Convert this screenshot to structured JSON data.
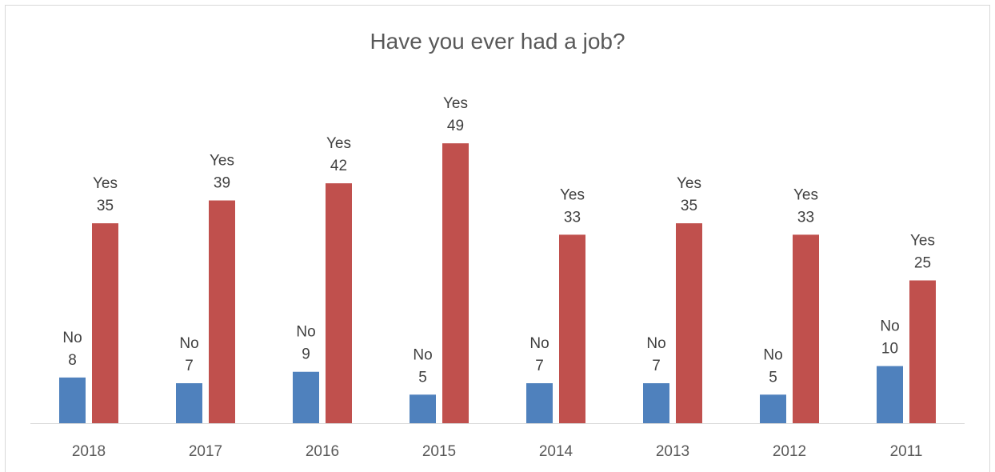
{
  "chart_data": {
    "type": "bar",
    "title": "Have you ever had a job?",
    "categories": [
      "2018",
      "2017",
      "2016",
      "2015",
      "2014",
      "2013",
      "2012",
      "2011"
    ],
    "series": [
      {
        "name": "No",
        "color": "#4f81bd",
        "values": [
          8,
          7,
          9,
          5,
          7,
          7,
          5,
          10
        ]
      },
      {
        "name": "Yes",
        "color": "#c0504d",
        "values": [
          35,
          39,
          42,
          49,
          33,
          35,
          33,
          25
        ]
      }
    ],
    "data_labels": "series name and value",
    "ylim": [
      0,
      60
    ],
    "y_axis_visible": false,
    "grid": false,
    "legend": "none"
  }
}
